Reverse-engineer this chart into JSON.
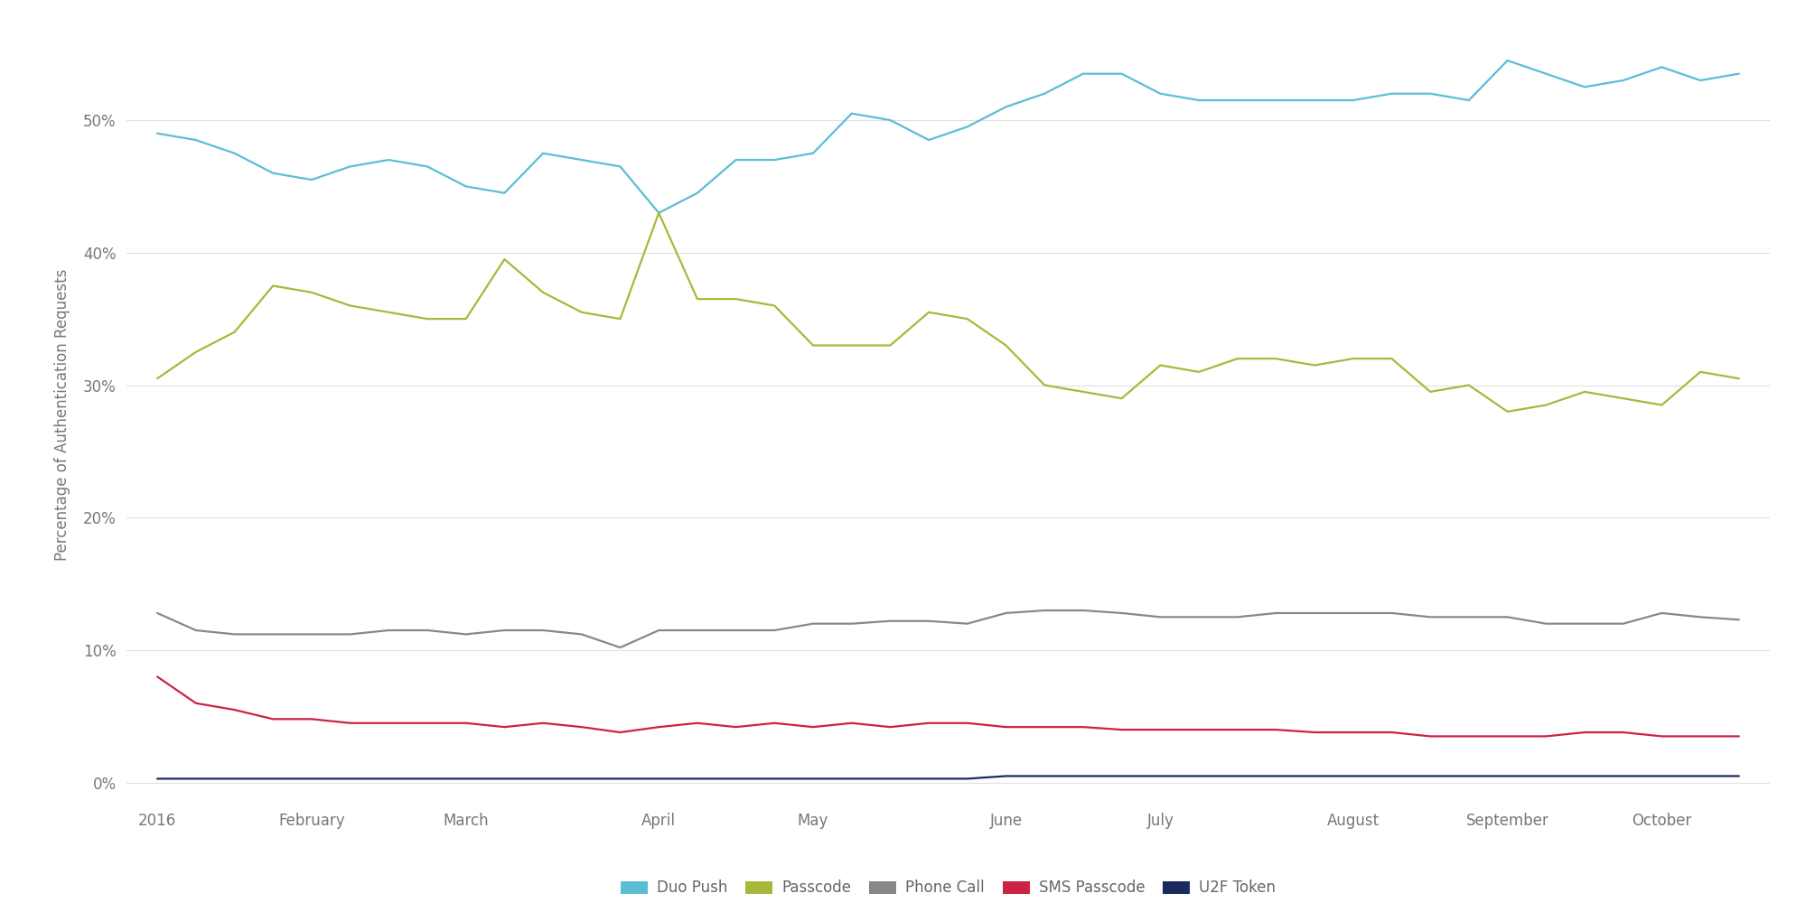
{
  "ylabel": "Percentage of Authentication Requests",
  "bg_color": "#ffffff",
  "grid_color": "#e0e0e0",
  "x_labels": [
    "2016",
    "February",
    "March",
    "April",
    "May",
    "June",
    "July",
    "August",
    "September",
    "October"
  ],
  "series": [
    {
      "name": "Duo Push",
      "color": "#5bbdd6",
      "data_y": [
        49.0,
        48.5,
        47.5,
        46.0,
        45.5,
        46.5,
        47.0,
        46.5,
        45.0,
        44.5,
        47.5,
        47.0,
        46.5,
        43.0,
        44.5,
        47.0,
        47.0,
        47.5,
        50.5,
        50.0,
        48.5,
        49.5,
        51.0,
        52.0,
        53.5,
        53.5,
        52.0,
        51.5,
        51.5,
        51.5,
        51.5,
        51.5,
        52.0,
        52.0,
        51.5,
        54.5,
        53.5,
        52.5,
        53.0,
        54.0,
        53.0,
        53.5
      ]
    },
    {
      "name": "Passcode",
      "color": "#a8b83a",
      "data_y": [
        30.5,
        32.5,
        34.0,
        37.5,
        37.0,
        36.0,
        35.5,
        35.0,
        35.0,
        39.5,
        37.0,
        35.5,
        35.0,
        43.0,
        36.5,
        36.5,
        36.0,
        33.0,
        33.0,
        33.0,
        35.5,
        35.0,
        33.0,
        30.0,
        29.5,
        29.0,
        31.5,
        31.0,
        32.0,
        32.0,
        31.5,
        32.0,
        32.0,
        29.5,
        30.0,
        28.0,
        28.5,
        29.5,
        29.0,
        28.5,
        31.0,
        30.5
      ]
    },
    {
      "name": "Phone Call",
      "color": "#888888",
      "data_y": [
        12.8,
        11.5,
        11.2,
        11.2,
        11.2,
        11.2,
        11.5,
        11.5,
        11.2,
        11.5,
        11.5,
        11.2,
        10.2,
        11.5,
        11.5,
        11.5,
        11.5,
        12.0,
        12.0,
        12.2,
        12.2,
        12.0,
        12.8,
        13.0,
        13.0,
        12.8,
        12.5,
        12.5,
        12.5,
        12.8,
        12.8,
        12.8,
        12.8,
        12.5,
        12.5,
        12.5,
        12.0,
        12.0,
        12.0,
        12.8,
        12.5,
        12.3
      ]
    },
    {
      "name": "SMS Passcode",
      "color": "#cc2244",
      "data_y": [
        8.0,
        6.0,
        5.5,
        4.8,
        4.8,
        4.5,
        4.5,
        4.5,
        4.5,
        4.2,
        4.5,
        4.2,
        3.8,
        4.2,
        4.5,
        4.2,
        4.5,
        4.2,
        4.5,
        4.2,
        4.5,
        4.5,
        4.2,
        4.2,
        4.2,
        4.0,
        4.0,
        4.0,
        4.0,
        4.0,
        3.8,
        3.8,
        3.8,
        3.5,
        3.5,
        3.5,
        3.5,
        3.8,
        3.8,
        3.5,
        3.5,
        3.5
      ]
    },
    {
      "name": "U2F Token",
      "color": "#1a2a5e",
      "data_y": [
        0.3,
        0.3,
        0.3,
        0.3,
        0.3,
        0.3,
        0.3,
        0.3,
        0.3,
        0.3,
        0.3,
        0.3,
        0.3,
        0.3,
        0.3,
        0.3,
        0.3,
        0.3,
        0.3,
        0.3,
        0.3,
        0.3,
        0.5,
        0.5,
        0.5,
        0.5,
        0.5,
        0.5,
        0.5,
        0.5,
        0.5,
        0.5,
        0.5,
        0.5,
        0.5,
        0.5,
        0.5,
        0.5,
        0.5,
        0.5,
        0.5,
        0.5
      ]
    }
  ],
  "n_points": 42,
  "x_tick_indices": [
    0,
    4,
    8,
    13,
    17,
    22,
    26,
    31,
    35,
    39
  ],
  "yticks": [
    0,
    10,
    20,
    30,
    40,
    50
  ],
  "ylim": [
    -1.5,
    57
  ],
  "line_width": 1.6
}
